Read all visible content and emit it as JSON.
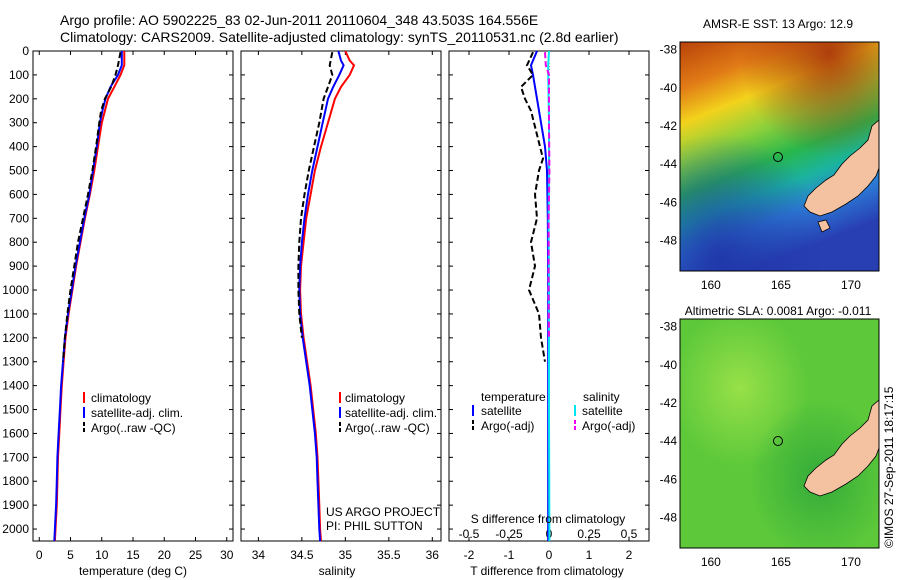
{
  "header": {
    "line1": "Argo profile: AO 5902225_83 02-Jun-2011 20110604_348 43.503S 164.556E",
    "line2": "Climatology: CARS2009. Satellite-adjusted climatology: synTS_20110531.nc (2.8d earlier)"
  },
  "colors": {
    "climatology": "#ff0000",
    "satellite_adj": "#0000ff",
    "argo": "#000000",
    "sal_satellite": "#00e5ee",
    "sal_argo": "#ee00ee",
    "land": "#f4c2a0"
  },
  "chart_data": [
    {
      "type": "line",
      "name": "temperature-panel",
      "xlabel": "temperature (deg C)",
      "ylabel": "",
      "xlim": [
        -1,
        31
      ],
      "ylim": [
        2050,
        0
      ],
      "x_ticks": [
        0,
        5,
        10,
        15,
        20,
        25,
        30
      ],
      "y_ticks": [
        0,
        100,
        200,
        300,
        400,
        500,
        600,
        700,
        800,
        900,
        1000,
        1100,
        1200,
        1300,
        1400,
        1500,
        1600,
        1700,
        1800,
        1900,
        2000
      ],
      "legend": {
        "placement": "lower-center",
        "entries": [
          "climatology",
          "satellite-adj. clim.",
          "Argo(..raw -QC)"
        ]
      },
      "series": [
        {
          "name": "climatology",
          "color_key": "climatology",
          "dash": "solid",
          "points": [
            [
              13.6,
              0
            ],
            [
              13.6,
              60
            ],
            [
              13.0,
              100
            ],
            [
              12.0,
              150
            ],
            [
              11.0,
              200
            ],
            [
              10.5,
              250
            ],
            [
              10.0,
              300
            ],
            [
              9.4,
              400
            ],
            [
              8.8,
              500
            ],
            [
              8.1,
              600
            ],
            [
              7.3,
              700
            ],
            [
              6.6,
              800
            ],
            [
              5.9,
              900
            ],
            [
              5.3,
              1000
            ],
            [
              4.7,
              1100
            ],
            [
              4.2,
              1200
            ],
            [
              3.9,
              1300
            ],
            [
              3.6,
              1400
            ],
            [
              3.4,
              1500
            ],
            [
              3.2,
              1600
            ],
            [
              3.0,
              1700
            ],
            [
              2.9,
              1800
            ],
            [
              2.8,
              1900
            ],
            [
              2.6,
              2000
            ],
            [
              2.5,
              2050
            ]
          ]
        },
        {
          "name": "satellite-adj. clim.",
          "color_key": "satellite_adj",
          "dash": "solid",
          "points": [
            [
              13.2,
              0
            ],
            [
              13.2,
              60
            ],
            [
              12.6,
              100
            ],
            [
              11.4,
              150
            ],
            [
              10.6,
              200
            ],
            [
              10.1,
              250
            ],
            [
              9.7,
              300
            ],
            [
              9.2,
              400
            ],
            [
              8.6,
              500
            ],
            [
              8.0,
              600
            ],
            [
              7.2,
              700
            ],
            [
              6.5,
              800
            ],
            [
              5.8,
              900
            ],
            [
              5.2,
              1000
            ],
            [
              4.6,
              1100
            ],
            [
              4.1,
              1200
            ],
            [
              3.8,
              1300
            ],
            [
              3.5,
              1400
            ],
            [
              3.3,
              1500
            ],
            [
              3.1,
              1600
            ],
            [
              2.9,
              1700
            ],
            [
              2.8,
              1800
            ],
            [
              2.7,
              1900
            ],
            [
              2.5,
              2000
            ],
            [
              2.4,
              2050
            ]
          ]
        },
        {
          "name": "Argo(..raw -QC)",
          "color_key": "argo",
          "dash": "dashed",
          "points": [
            [
              13.0,
              5
            ],
            [
              12.6,
              60
            ],
            [
              12.2,
              100
            ],
            [
              11.5,
              150
            ],
            [
              10.5,
              200
            ],
            [
              9.9,
              250
            ],
            [
              9.6,
              300
            ],
            [
              9.1,
              400
            ],
            [
              8.5,
              500
            ],
            [
              7.8,
              600
            ],
            [
              7.0,
              700
            ],
            [
              6.2,
              800
            ],
            [
              5.6,
              900
            ],
            [
              5.0,
              1000
            ],
            [
              4.5,
              1100
            ],
            [
              4.1,
              1200
            ],
            [
              3.8,
              1300
            ]
          ]
        }
      ]
    },
    {
      "type": "line",
      "name": "salinity-panel",
      "xlabel": "salinity",
      "ylabel": "",
      "xlim": [
        33.8,
        36.1
      ],
      "ylim": [
        2050,
        0
      ],
      "x_ticks": [
        34,
        34.5,
        35,
        35.5,
        36
      ],
      "legend": {
        "placement": "lower-right",
        "entries": [
          "climatology",
          "satellite-adj. clim.",
          "Argo(..raw -QC)"
        ]
      },
      "annotations": [
        "US ARGO PROJECT",
        "PI: PHIL SUTTON"
      ],
      "series": [
        {
          "name": "climatology",
          "color_key": "climatology",
          "dash": "solid",
          "points": [
            [
              35.0,
              0
            ],
            [
              35.05,
              40
            ],
            [
              35.1,
              60
            ],
            [
              35.05,
              100
            ],
            [
              34.95,
              150
            ],
            [
              34.88,
              200
            ],
            [
              34.8,
              300
            ],
            [
              34.72,
              400
            ],
            [
              34.65,
              500
            ],
            [
              34.6,
              600
            ],
            [
              34.55,
              700
            ],
            [
              34.52,
              800
            ],
            [
              34.49,
              900
            ],
            [
              34.48,
              1000
            ],
            [
              34.49,
              1100
            ],
            [
              34.52,
              1200
            ],
            [
              34.56,
              1300
            ],
            [
              34.6,
              1400
            ],
            [
              34.63,
              1500
            ],
            [
              34.66,
              1600
            ],
            [
              34.68,
              1700
            ],
            [
              34.69,
              1800
            ],
            [
              34.7,
              1900
            ],
            [
              34.71,
              2000
            ],
            [
              34.72,
              2050
            ]
          ]
        },
        {
          "name": "satellite-adj. clim.",
          "color_key": "satellite_adj",
          "dash": "solid",
          "points": [
            [
              34.92,
              0
            ],
            [
              34.95,
              40
            ],
            [
              34.98,
              60
            ],
            [
              34.93,
              100
            ],
            [
              34.86,
              150
            ],
            [
              34.8,
              200
            ],
            [
              34.74,
              300
            ],
            [
              34.68,
              400
            ],
            [
              34.62,
              500
            ],
            [
              34.57,
              600
            ],
            [
              34.53,
              700
            ],
            [
              34.5,
              800
            ],
            [
              34.48,
              900
            ],
            [
              34.47,
              1000
            ],
            [
              34.48,
              1100
            ],
            [
              34.51,
              1200
            ],
            [
              34.55,
              1300
            ],
            [
              34.59,
              1400
            ],
            [
              34.62,
              1500
            ],
            [
              34.65,
              1600
            ],
            [
              34.67,
              1700
            ],
            [
              34.68,
              1800
            ],
            [
              34.69,
              1900
            ],
            [
              34.7,
              2000
            ],
            [
              34.71,
              2050
            ]
          ]
        },
        {
          "name": "Argo(..raw -QC)",
          "color_key": "argo",
          "dash": "dashed",
          "points": [
            [
              34.85,
              5
            ],
            [
              34.82,
              60
            ],
            [
              34.85,
              100
            ],
            [
              34.8,
              150
            ],
            [
              34.75,
              200
            ],
            [
              34.7,
              300
            ],
            [
              34.64,
              400
            ],
            [
              34.58,
              500
            ],
            [
              34.53,
              600
            ],
            [
              34.49,
              700
            ],
            [
              34.47,
              800
            ],
            [
              34.46,
              900
            ],
            [
              34.46,
              1000
            ],
            [
              34.47,
              1100
            ],
            [
              34.5,
              1200
            ]
          ]
        }
      ]
    },
    {
      "type": "line",
      "name": "difference-panel",
      "xlabel": "T difference from climatology",
      "x2label": "S difference from climatology",
      "xlim": [
        -2.5,
        2.5
      ],
      "ylim": [
        2050,
        0
      ],
      "x_ticks": [
        -2,
        -1,
        0,
        1,
        2
      ],
      "x2_ticks": [
        -0.5,
        -0.25,
        0,
        0.25,
        0.5
      ],
      "x2lim": [
        -0.625,
        0.625
      ],
      "legend": {
        "placement": "lower-center",
        "temperature_header": "temperature",
        "salinity_header": "salinity",
        "entries": [
          "satellite",
          "Argo(-adj)",
          "satellite",
          "Argo(-adj)"
        ]
      },
      "series": [
        {
          "name": "satellite",
          "group": "temperature",
          "color_key": "satellite_adj",
          "dash": "solid",
          "points": [
            [
              -0.3,
              0
            ],
            [
              -0.45,
              60
            ],
            [
              -0.4,
              100
            ],
            [
              -0.3,
              200
            ],
            [
              -0.2,
              300
            ],
            [
              -0.1,
              400
            ],
            [
              -0.05,
              500
            ],
            [
              -0.03,
              700
            ],
            [
              -0.02,
              1000
            ],
            [
              -0.02,
              1500
            ],
            [
              -0.02,
              2050
            ]
          ]
        },
        {
          "name": "Argo(-adj)",
          "group": "temperature",
          "color_key": "argo",
          "dash": "dashed",
          "points": [
            [
              -0.4,
              5
            ],
            [
              -0.55,
              60
            ],
            [
              -0.4,
              100
            ],
            [
              -0.7,
              150
            ],
            [
              -0.6,
              200
            ],
            [
              -0.45,
              250
            ],
            [
              -0.3,
              350
            ],
            [
              -0.15,
              450
            ],
            [
              -0.25,
              500
            ],
            [
              -0.35,
              600
            ],
            [
              -0.3,
              700
            ],
            [
              -0.45,
              800
            ],
            [
              -0.35,
              900
            ],
            [
              -0.5,
              1000
            ],
            [
              -0.25,
              1100
            ],
            [
              -0.2,
              1200
            ],
            [
              -0.1,
              1300
            ]
          ]
        },
        {
          "name": "satellite",
          "group": "salinity",
          "color_key": "sal_satellite",
          "dash": "solid",
          "points": [
            [
              0.0,
              0
            ],
            [
              -0.02,
              60
            ],
            [
              -0.02,
              100
            ],
            [
              0.0,
              300
            ],
            [
              0.0,
              500
            ],
            [
              -0.01,
              700
            ],
            [
              0.0,
              1000
            ],
            [
              0.0,
              1500
            ],
            [
              0.01,
              2050
            ]
          ]
        },
        {
          "name": "Argo(-adj)",
          "group": "salinity",
          "color_key": "sal_argo",
          "dash": "dashed",
          "points": [
            [
              -0.1,
              5
            ],
            [
              -0.08,
              60
            ],
            [
              0.0,
              100
            ],
            [
              0.0,
              300
            ],
            [
              0.01,
              500
            ],
            [
              -0.01,
              700
            ],
            [
              -0.01,
              1000
            ],
            [
              0.0,
              1200
            ]
          ]
        }
      ]
    },
    {
      "type": "heatmap",
      "name": "sst-map",
      "title": "AMSR-E SST: 13 Argo: 12.9",
      "xlim": [
        157.8,
        172
      ],
      "ylim": [
        -49.6,
        -37.6
      ],
      "x_ticks": [
        160,
        165,
        170
      ],
      "y_ticks": [
        -38,
        -40,
        -42,
        -44,
        -46,
        -48
      ],
      "marker": [
        164.556,
        -43.503
      ]
    },
    {
      "type": "heatmap",
      "name": "sla-map",
      "title": "Altimetric SLA: 0.0081 Argo: -0.011",
      "xlim": [
        157.8,
        172
      ],
      "ylim": [
        -49.6,
        -37.6
      ],
      "x_ticks": [
        160,
        165,
        170
      ],
      "y_ticks": [
        -38,
        -40,
        -42,
        -44,
        -46,
        -48
      ],
      "marker": [
        164.556,
        -43.503
      ]
    }
  ],
  "credit": "©IMOS 27-Sep-2011 18:17:15"
}
